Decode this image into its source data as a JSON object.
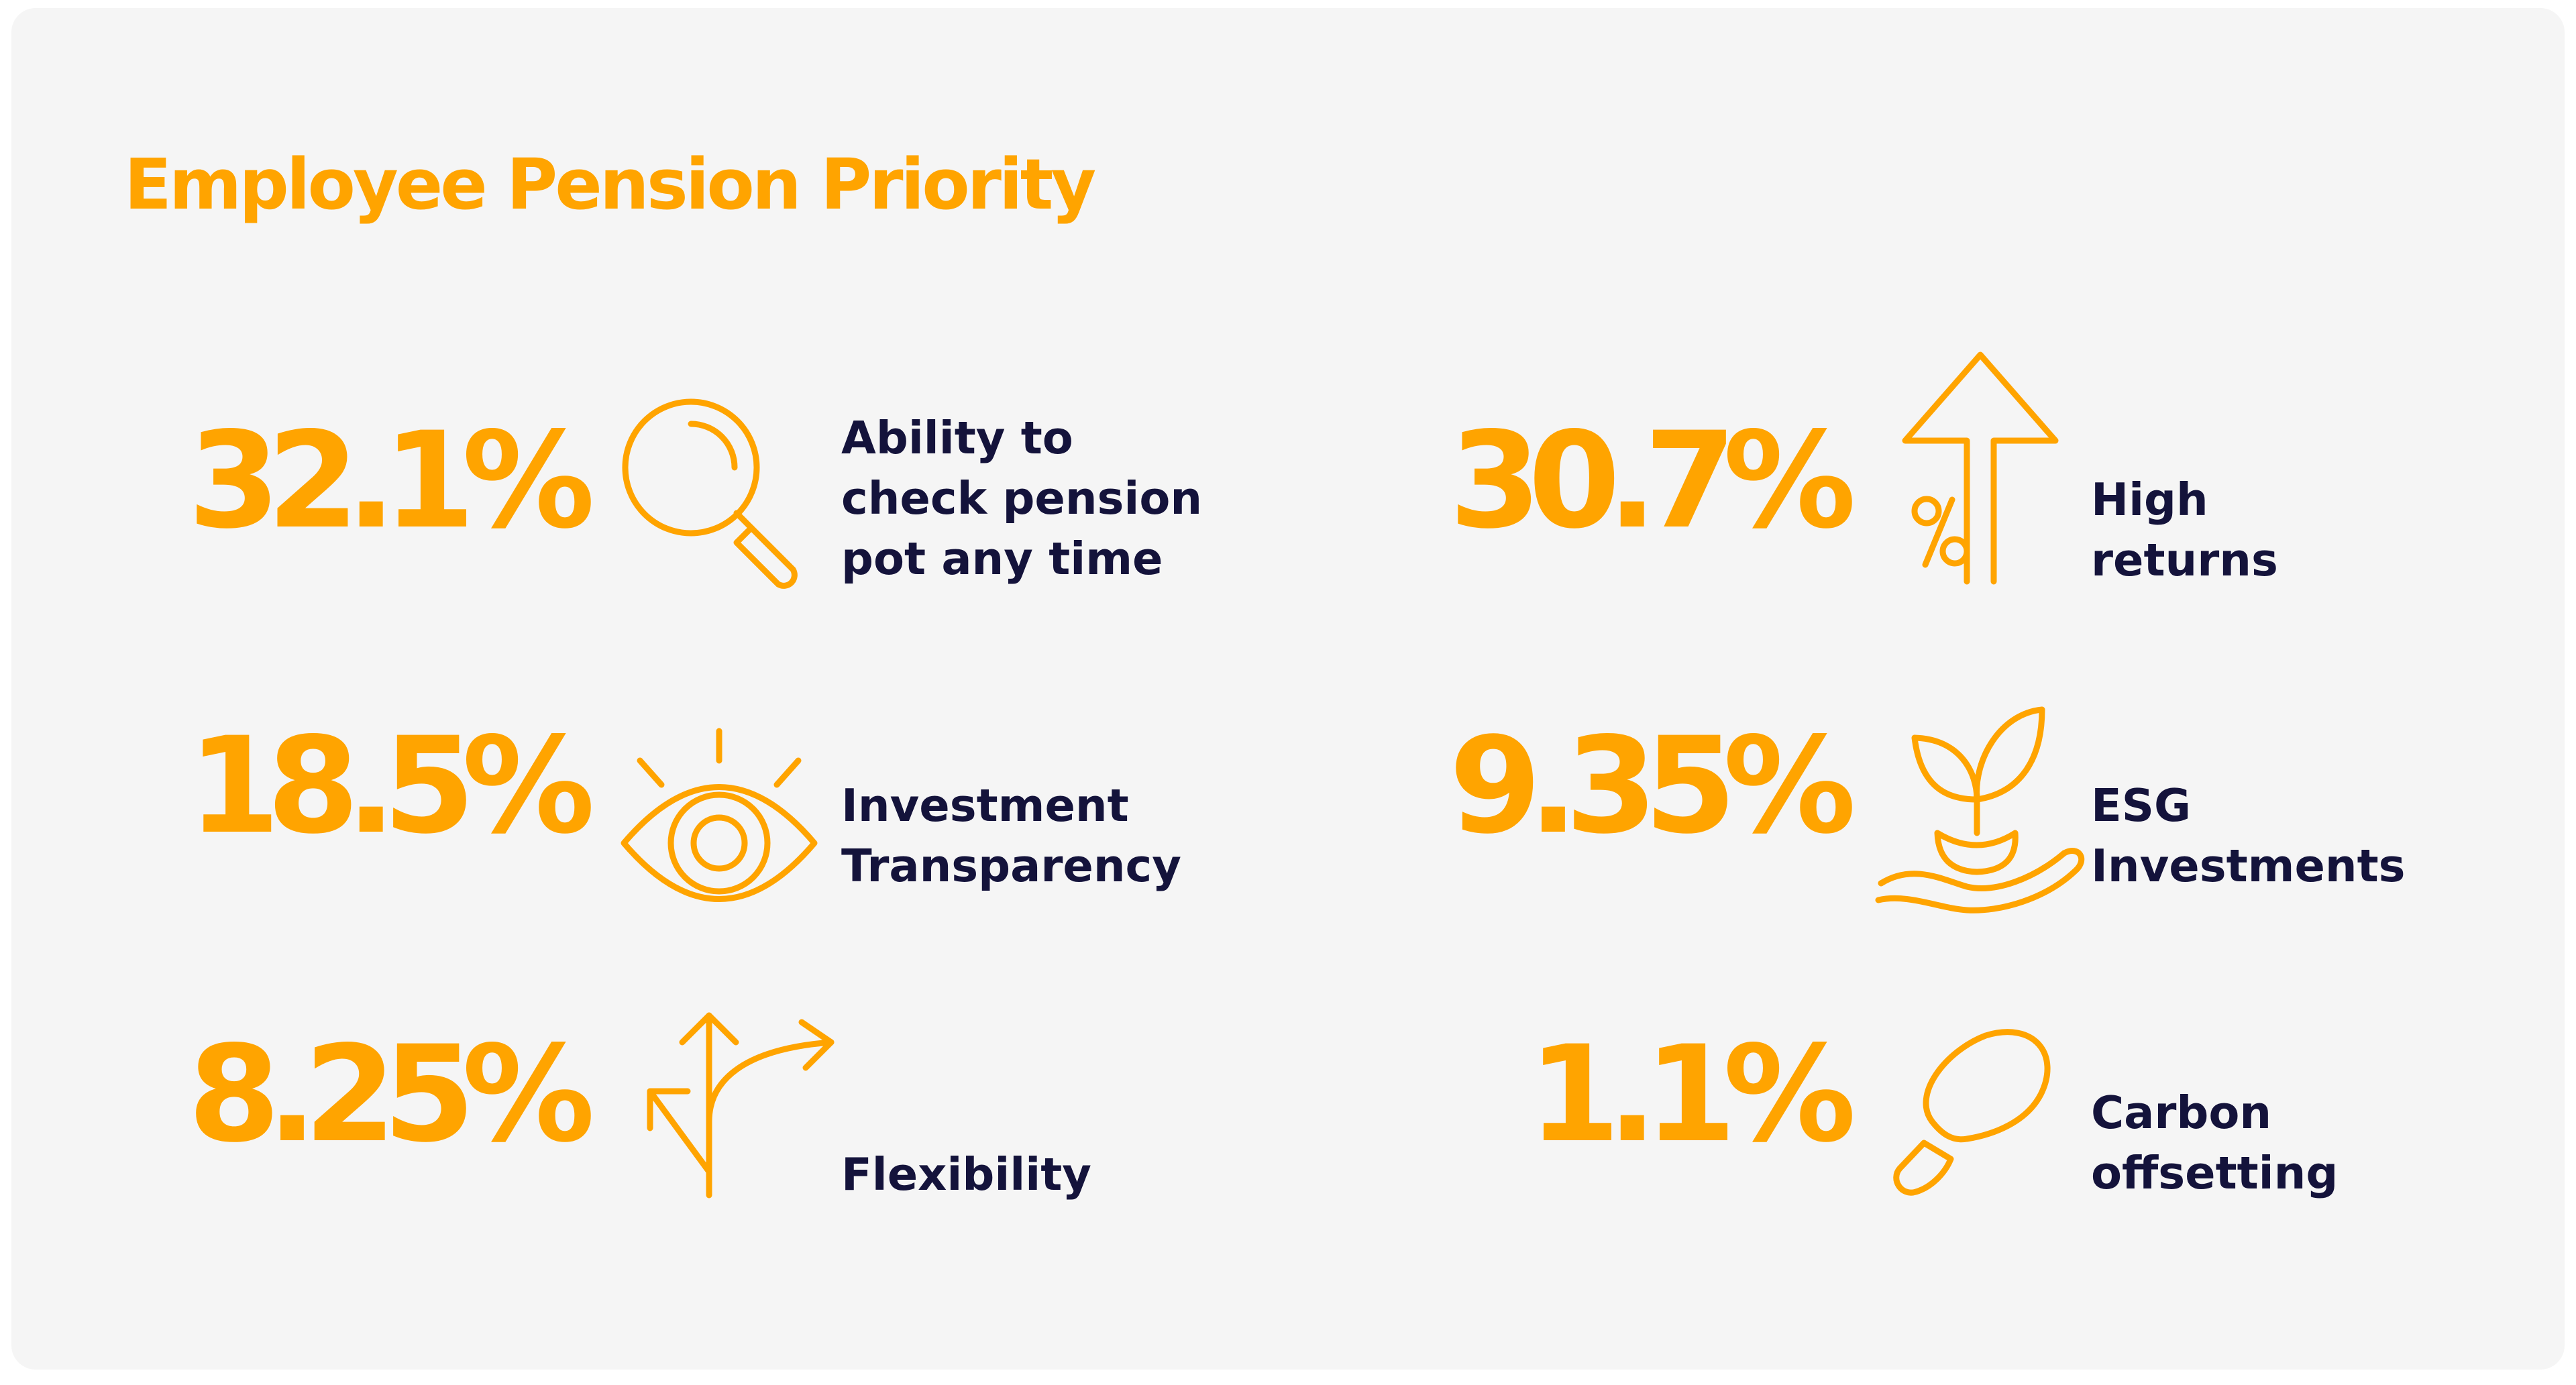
{
  "title": "Employee Pension Priority",
  "accent_color": "#ffa400",
  "label_color": "#14133b",
  "background_color": "#f5f5f5",
  "items": [
    {
      "value": "32.1%",
      "icon": "magnifier-icon",
      "label": "Ability to\ncheck pension\npot any time"
    },
    {
      "value": "30.7%",
      "icon": "percent-arrow-up-icon",
      "label": "High\nreturns"
    },
    {
      "value": "18.5%",
      "icon": "eye-icon",
      "label": "Investment\nTransparency"
    },
    {
      "value": "9.35%",
      "icon": "plant-in-hand-icon",
      "label": "ESG\nInvestments"
    },
    {
      "value": "8.25%",
      "icon": "branching-arrows-icon",
      "label": "Flexibility"
    },
    {
      "value": "1.1%",
      "icon": "footprint-icon",
      "label": "Carbon\noffsetting"
    }
  ]
}
